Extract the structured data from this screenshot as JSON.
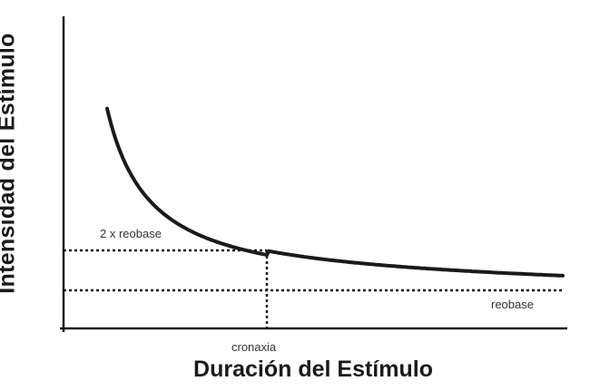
{
  "chart_data": {
    "type": "line",
    "title": "",
    "xlabel": "Duración del Estímulo",
    "ylabel": "Intensidad del Estímulo",
    "x_ticks": [],
    "y_ticks": [],
    "grid": false,
    "series": [
      {
        "curve": "strength-duration",
        "color": "#1a1a1a"
      }
    ],
    "reference_lines": [
      {
        "type": "horizontal",
        "label": "reobase",
        "level": 1,
        "style": "dotted"
      },
      {
        "type": "horizontal",
        "label": "2 x reobase",
        "level": 2,
        "style": "dotted"
      },
      {
        "type": "vertical",
        "label": "cronaxia",
        "at": "cronaxia",
        "style": "dotted"
      }
    ]
  }
}
